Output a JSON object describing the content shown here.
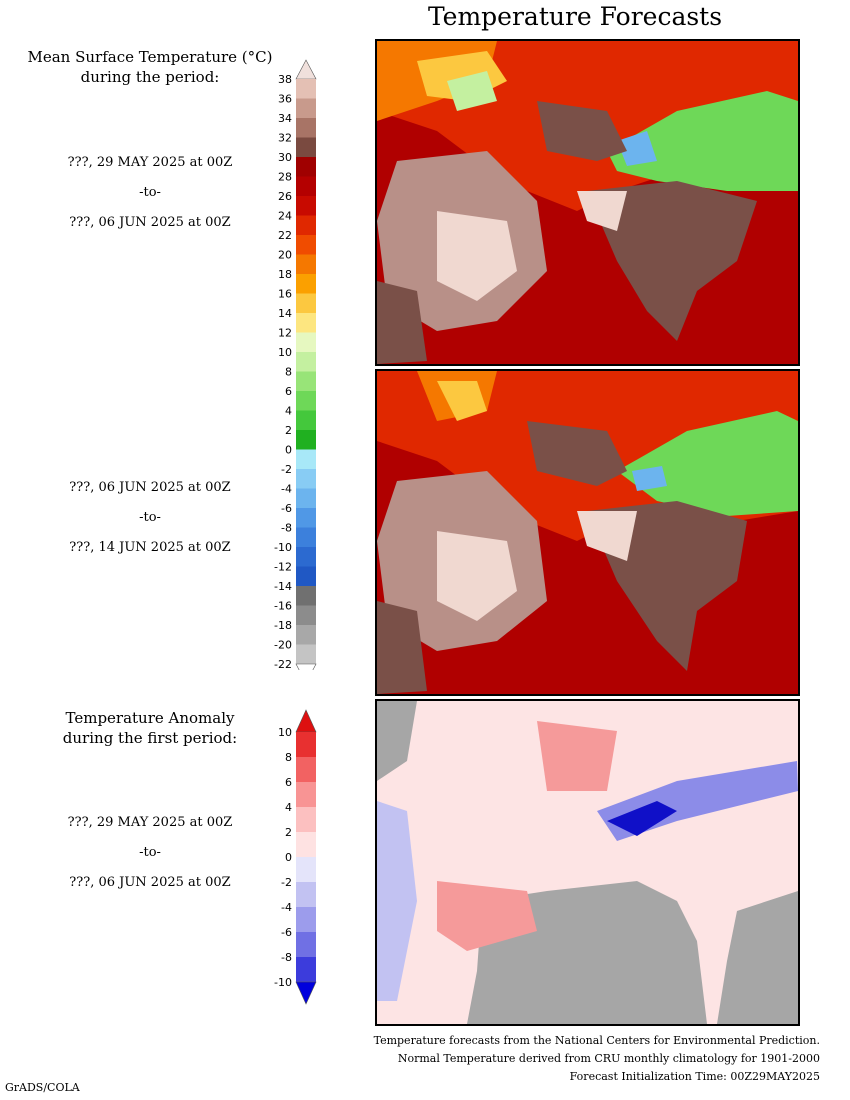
{
  "title": "Temperature Forecasts",
  "mean_panel": {
    "heading_line1": "Mean Surface Temperature (°C)",
    "heading_line2": "during the period:",
    "period1": {
      "start": "???, 29 MAY 2025 at 00Z",
      "to": "-to-",
      "end": "???, 06 JUN 2025 at 00Z"
    },
    "period2": {
      "start": "???, 06 JUN 2025 at 00Z",
      "to": "-to-",
      "end": "???, 14 JUN 2025 at 00Z"
    }
  },
  "anomaly_panel": {
    "heading_line1": "Temperature Anomaly",
    "heading_line2": "during the first period:",
    "period": {
      "start": "???, 29 MAY 2025 at 00Z",
      "to": "-to-",
      "end": "???, 06 JUN 2025 at 00Z"
    }
  },
  "temp_colorbar": {
    "labels": [
      "38",
      "36",
      "34",
      "32",
      "30",
      "28",
      "26",
      "24",
      "22",
      "20",
      "18",
      "16",
      "14",
      "12",
      "10",
      "8",
      "6",
      "4",
      "2",
      "0",
      "-2",
      "-4",
      "-6",
      "-8",
      "-10",
      "-12",
      "-14",
      "-16",
      "-18",
      "-20",
      "-22"
    ],
    "top_cap_color": "#f0e0dc",
    "bottom_cap_color": "#ffffff",
    "colors": [
      "#e4c0b4",
      "#c89a8c",
      "#a87466",
      "#7a4a40",
      "#a00000",
      "#b40000",
      "#c80a00",
      "#e02800",
      "#f04c00",
      "#f57800",
      "#fba000",
      "#fcc840",
      "#fde680",
      "#e6f8c0",
      "#c4f0a0",
      "#98e478",
      "#6ed858",
      "#44c83c",
      "#20b020",
      "#a8e8f8",
      "#88ccf4",
      "#6cb4ee",
      "#5098e6",
      "#3c80dc",
      "#2c6ad0",
      "#2058c4",
      "#707070",
      "#8c8c8c",
      "#a8a8a8",
      "#c4c4c4"
    ]
  },
  "anomaly_colorbar": {
    "labels": [
      "10",
      "8",
      "6",
      "4",
      "2",
      "0",
      "-2",
      "-4",
      "-6",
      "-8",
      "-10"
    ],
    "top_cap_color": "#dd1010",
    "bottom_cap_color": "#0000dd",
    "colors": [
      "#e83030",
      "#f26262",
      "#f89494",
      "#fcc0c0",
      "#fee2e2",
      "#e4e4fa",
      "#c2c2f2",
      "#9c9cec",
      "#7070e4",
      "#3c3cdc"
    ]
  },
  "footer": {
    "line1": "Temperature forecasts from the National Centers for Environmental Prediction.",
    "line2": "Normal Temperature derived from CRU monthly climatology for 1901-2000",
    "line3": "Forecast Initialization Time: 00Z29MAY2025"
  },
  "credit": "GrADS/COLA",
  "map_colors": {
    "ocean_hot": "#b00000",
    "desert_light": "#f0d8d0",
    "desert_mid": "#b89088",
    "desert_dark": "#7a5048",
    "orange": "#f57800",
    "yellow": "#fcc840",
    "green": "#6ed858",
    "green_light": "#c4f0a0",
    "blue": "#6cb4ee",
    "red_land": "#e02800",
    "anomaly_bg": "#fde4e4",
    "anomaly_warm": "#f59a9a",
    "anomaly_cool": "#8c8ce8",
    "anomaly_deep": "#1010c8",
    "anomaly_ocean": "#a6a6a6"
  }
}
